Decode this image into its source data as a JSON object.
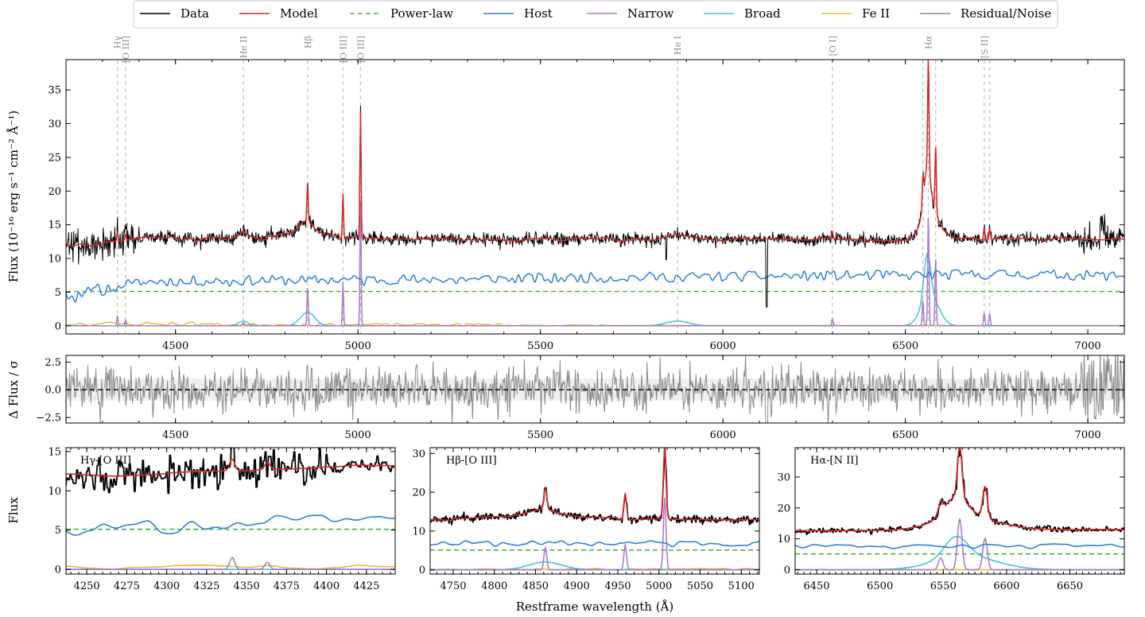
{
  "legend": [
    {
      "label": "Data",
      "color": "#000000",
      "dash": false
    },
    {
      "label": "Model",
      "color": "#d62728",
      "dash": false
    },
    {
      "label": "Power-law",
      "color": "#4caf50",
      "dash": true
    },
    {
      "label": "Host",
      "color": "#2f7fd8",
      "dash": false
    },
    {
      "label": "Narrow",
      "color": "#a77cc9",
      "dash": false
    },
    {
      "label": "Broad",
      "color": "#3fc4d0",
      "dash": false
    },
    {
      "label": "Fe II",
      "color": "#e8b830",
      "dash": false
    },
    {
      "label": "Residual/Noise",
      "color": "#8a8a8a",
      "dash": false
    }
  ],
  "axes": {
    "main_ylabel": "Flux (10⁻¹⁶ erg s⁻¹ cm⁻² Å⁻¹)",
    "resid_ylabel": "Δ Flux / σ",
    "inset_ylabel": "Flux",
    "xlabel": "Restframe wavelength (Å)"
  },
  "chart_data": [
    {
      "type": "line",
      "panel": "main",
      "xlim": [
        4200,
        7100
      ],
      "ylim": [
        -1.2,
        39.5
      ],
      "x_ticks": [
        4500,
        5000,
        5500,
        6000,
        6500,
        7000
      ],
      "y_ticks": [
        0,
        5,
        10,
        15,
        20,
        25,
        30,
        35
      ],
      "line_markers": [
        {
          "label": "Hγ",
          "x": 4341
        },
        {
          "label": "[O III]",
          "x": 4363
        },
        {
          "label": "He II",
          "x": 4686
        },
        {
          "label": "Hβ",
          "x": 4862
        },
        {
          "label": "[O III]",
          "x": 4959
        },
        {
          "label": "[O III]",
          "x": 5007
        },
        {
          "label": "He I",
          "x": 5876
        },
        {
          "label": "[O I]",
          "x": 6300
        },
        {
          "label": "Hα",
          "x": 6563
        },
        {
          "label": "",
          "x": 6548
        },
        {
          "label": "",
          "x": 6583
        },
        {
          "label": "[S II]",
          "x": 6716
        },
        {
          "label": "",
          "x": 6731
        }
      ],
      "components": {
        "power_law": 5.1,
        "host_level": 7.8,
        "continuum": 12.8,
        "narrow_lines": [
          {
            "center": 4341,
            "amp": 1.5,
            "sigma": 1.6
          },
          {
            "center": 4363,
            "amp": 0.9,
            "sigma": 1.6
          },
          {
            "center": 4686,
            "amp": 0.5,
            "sigma": 2.0
          },
          {
            "center": 4862,
            "amp": 5.8,
            "sigma": 1.7
          },
          {
            "center": 4959,
            "amp": 6.5,
            "sigma": 1.6
          },
          {
            "center": 5007,
            "amp": 18.5,
            "sigma": 1.6
          },
          {
            "center": 6300,
            "amp": 1.1,
            "sigma": 1.8
          },
          {
            "center": 6548,
            "amp": 3.8,
            "sigma": 1.8
          },
          {
            "center": 6563,
            "amp": 16.5,
            "sigma": 1.8
          },
          {
            "center": 6583,
            "amp": 10.2,
            "sigma": 1.8
          },
          {
            "center": 6716,
            "amp": 1.9,
            "sigma": 1.9
          },
          {
            "center": 6731,
            "amp": 1.8,
            "sigma": 1.9
          }
        ],
        "broad_lines": [
          {
            "center": 4686,
            "amp": 0.7,
            "sigma": 14
          },
          {
            "center": 4862,
            "amp": 2.0,
            "sigma": 20
          },
          {
            "center": 5876,
            "amp": 0.7,
            "sigma": 32
          },
          {
            "center": 6560,
            "amp": 6.6,
            "sigma": 9
          },
          {
            "center": 6568,
            "amp": 4.4,
            "sigma": 24
          }
        ]
      }
    },
    {
      "type": "line",
      "panel": "residual",
      "xlim": [
        4200,
        7100
      ],
      "ylim": [
        -3.0,
        3.1
      ],
      "x_ticks": [
        4500,
        5000,
        5500,
        6000,
        6500,
        7000
      ],
      "y_ticks": [
        -2.5,
        0.0,
        2.5
      ],
      "y_tick_labels": [
        "−2.5",
        "0.0",
        "2.5"
      ],
      "zero_line": 0.0,
      "band": [
        -1,
        1
      ]
    },
    {
      "type": "line",
      "panel": "inset-hgamma",
      "title": "Hγ-[O III]",
      "xlim": [
        4237,
        4443
      ],
      "ylim": [
        -0.6,
        15.5
      ],
      "x_ticks": [
        4250,
        4275,
        4300,
        4325,
        4350,
        4375,
        4400,
        4425
      ],
      "y_ticks": [
        0,
        5,
        10,
        15
      ]
    },
    {
      "type": "line",
      "panel": "inset-hbeta",
      "title": "Hβ-[O III]",
      "xlim": [
        4722,
        5122
      ],
      "ylim": [
        -1.1,
        31.5
      ],
      "x_ticks": [
        4750,
        4800,
        4850,
        4900,
        4950,
        5000,
        5050,
        5100
      ],
      "y_ticks": [
        0,
        10,
        20,
        30
      ]
    },
    {
      "type": "line",
      "panel": "inset-halpha",
      "title": "Hα-[N II]",
      "xlim": [
        6433,
        6693
      ],
      "ylim": [
        -1.4,
        39.5
      ],
      "x_ticks": [
        6450,
        6500,
        6550,
        6600,
        6650
      ],
      "y_ticks": [
        0,
        10,
        20,
        30
      ]
    }
  ]
}
